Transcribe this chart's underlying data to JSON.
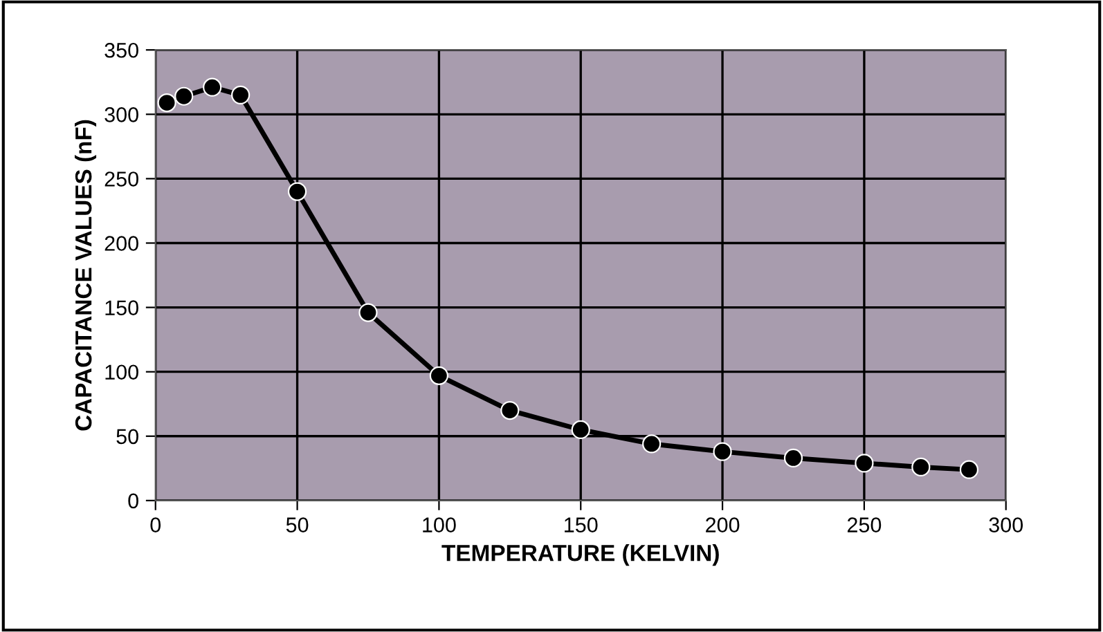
{
  "chart_data": {
    "type": "line",
    "xlabel": "TEMPERATURE (KELVIN)",
    "ylabel": "CAPACITANCE VALUES (nF)",
    "xlim": [
      0,
      300
    ],
    "xticks": [
      0,
      50,
      100,
      150,
      200,
      250,
      300
    ],
    "ylim": [
      0,
      350
    ],
    "yticks": [
      0,
      50,
      100,
      150,
      200,
      250,
      300,
      350
    ],
    "grid": true,
    "marker": "circle",
    "line_style": "solid",
    "legend": false,
    "series": [
      {
        "color": "#000000",
        "x": [
          4,
          10,
          20,
          30,
          50,
          75,
          100,
          125,
          150,
          175,
          200,
          225,
          250,
          270,
          287
        ],
        "values": [
          309,
          314,
          321,
          315,
          240,
          146,
          97,
          70,
          55,
          44,
          38,
          33,
          29,
          26,
          24
        ]
      }
    ]
  }
}
